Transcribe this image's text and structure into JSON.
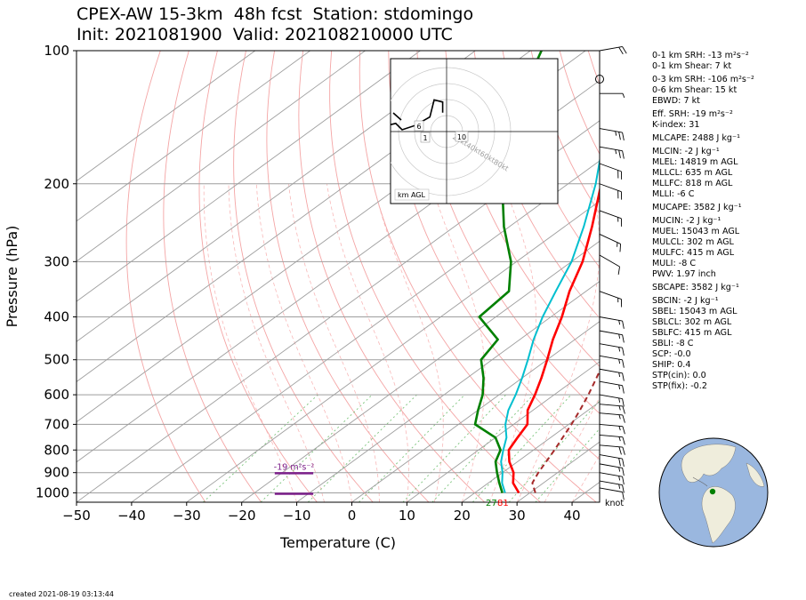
{
  "title_line1": "CPEX-AW 15-3km  48h fcst  Station: stdomingo",
  "title_line2": "Init: 2021081900  Valid: 202108210000 UTC",
  "created": "created 2021-08-19 03:13:44",
  "params": [
    {
      "text": "0-1 km SRH: -13 m²s⁻²",
      "gap": false
    },
    {
      "text": "0-1 km Shear: 7 kt",
      "gap": false
    },
    {
      "text": "0-3 km SRH: -106 m²s⁻²",
      "gap": true
    },
    {
      "text": "0-6 km Shear: 15 kt",
      "gap": false
    },
    {
      "text": "EBWD: 7 kt",
      "gap": false
    },
    {
      "text": "Eff. SRH: -19 m²s⁻²",
      "gap": true
    },
    {
      "text": "K-index: 31",
      "gap": false
    },
    {
      "text": "MLCAPE: 2488 J kg⁻¹",
      "gap": true
    },
    {
      "text": "MLCIN: -2 J kg⁻¹",
      "gap": true
    },
    {
      "text": "MLEL: 14819 m AGL",
      "gap": false
    },
    {
      "text": "MLLCL: 635 m AGL",
      "gap": false
    },
    {
      "text": "MLLFC: 818 m AGL",
      "gap": false
    },
    {
      "text": "MLLI: -6 C",
      "gap": false
    },
    {
      "text": "MUCAPE: 3582 J kg⁻¹",
      "gap": true
    },
    {
      "text": "MUCIN: -2 J kg⁻¹",
      "gap": true
    },
    {
      "text": "MUEL: 15043 m AGL",
      "gap": false
    },
    {
      "text": "MULCL: 302 m AGL",
      "gap": false
    },
    {
      "text": "MULFC: 415 m AGL",
      "gap": false
    },
    {
      "text": "MULI: -8 C",
      "gap": false
    },
    {
      "text": "PWV: 1.97 inch",
      "gap": false
    },
    {
      "text": "SBCAPE: 3582 J kg⁻¹",
      "gap": true
    },
    {
      "text": "SBCIN: -2 J kg⁻¹",
      "gap": true
    },
    {
      "text": "SBEL: 15043 m AGL",
      "gap": false
    },
    {
      "text": "SBLCL: 302 m AGL",
      "gap": false
    },
    {
      "text": "SBLFC: 415 m AGL",
      "gap": false
    },
    {
      "text": "SBLI: -8 C",
      "gap": false
    },
    {
      "text": "SCP: -0.0",
      "gap": false
    },
    {
      "text": "SHIP: 0.4",
      "gap": false
    },
    {
      "text": "STP(cin): 0.0",
      "gap": false
    },
    {
      "text": "STP(fix): -0.2",
      "gap": false
    }
  ],
  "colors": {
    "temperature": "#ff0000",
    "dewpoint": "#008000",
    "wetbulb": "#00bfcf",
    "parcel": "#a52a2a",
    "isobar": "#9e9e9e",
    "isotherm": "#9e9e9e",
    "dry_adiabat": "#f4a5a5",
    "moist_adiabat": "#f8b8b8",
    "mixing_ratio": "#7cc47c",
    "srh_bar": "#7b1f8a",
    "globe_ocean": "#9ab7df",
    "globe_land": "#efeddc",
    "station_dot": "#008000"
  },
  "chart_data": {
    "type": "line",
    "subtype": "skew-t log-p",
    "xlabel": "Temperature (C)",
    "ylabel": "Pressure (hPa)",
    "xlim": [
      -50,
      45
    ],
    "ylim": [
      1050,
      100
    ],
    "x_ticks": [
      -50,
      -40,
      -30,
      -20,
      -10,
      0,
      10,
      20,
      30,
      40
    ],
    "y_ticks": [
      100,
      200,
      300,
      400,
      500,
      600,
      700,
      800,
      900,
      1000
    ],
    "series": [
      {
        "name": "Temperature",
        "pressure": [
          1000,
          950,
          900,
          850,
          800,
          750,
          700,
          650,
          600,
          550,
          500,
          450,
          400,
          350,
          300,
          250,
          200,
          150,
          100
        ],
        "temperature": [
          28,
          24.5,
          22,
          18.5,
          15.5,
          14,
          12.5,
          9,
          6.5,
          3.5,
          0,
          -4,
          -8,
          -13,
          -18,
          -25,
          -34,
          -45,
          -58
        ]
      },
      {
        "name": "Dewpoint",
        "pressure": [
          1000,
          950,
          900,
          850,
          800,
          750,
          700,
          650,
          600,
          550,
          500,
          450,
          400,
          350,
          300,
          250,
          200,
          150,
          100
        ],
        "temperature": [
          25,
          22,
          19,
          16,
          14,
          10,
          3,
          0,
          -3,
          -7,
          -12,
          -14,
          -23,
          -24,
          -31,
          -41,
          -52,
          -65,
          -78
        ]
      },
      {
        "name": "Wet-bulb",
        "pressure": [
          1000,
          950,
          900,
          850,
          800,
          750,
          700,
          650,
          600,
          550,
          500,
          450,
          400,
          350,
          300,
          250,
          200,
          150,
          100
        ],
        "temperature": [
          25.5,
          22.5,
          20,
          17,
          14.5,
          12,
          8.5,
          5.5,
          3,
          0,
          -3.5,
          -7.5,
          -11.5,
          -15.5,
          -20,
          -26.5,
          -35,
          -47,
          -62
        ]
      },
      {
        "name": "Parcel",
        "pressure": [
          1000,
          950,
          900,
          850,
          800,
          750,
          700,
          650,
          600,
          550,
          500,
          450,
          400,
          350,
          300,
          250,
          200,
          150,
          100
        ],
        "temperature": [
          31,
          28,
          26.5,
          25.2,
          23.8,
          22.2,
          20.5,
          18.5,
          16.2,
          13.5,
          10.5,
          7,
          3,
          -2,
          -8,
          -16,
          -26,
          -40,
          -60
        ]
      }
    ],
    "srh_markers": [
      {
        "label": "-19 m²s⁻²",
        "pressure": 850,
        "t_start": -14,
        "t_end": -7
      },
      {
        "label": "",
        "pressure": 1005,
        "t_start": -14,
        "t_end": -7
      }
    ],
    "surface_labels": [
      {
        "text": "27",
        "color": "green"
      },
      {
        "text": "81",
        "color": "red"
      }
    ],
    "hodograph": {
      "rings_kt": [
        20,
        40,
        60,
        80
      ],
      "ring_labels": [
        "20kt",
        "40kt",
        "60kt",
        "80kt"
      ],
      "legend": "km AGL",
      "height_labels": [
        "6",
        "1",
        "10"
      ],
      "trace": [
        [
          -9,
          3
        ],
        [
          -6,
          -1
        ],
        [
          -2,
          -3
        ],
        [
          2,
          -2
        ],
        [
          5,
          -5
        ],
        [
          11,
          -3
        ],
        [
          18,
          1
        ],
        [
          20,
          9
        ],
        [
          24,
          8
        ],
        [
          24,
          3
        ]
      ]
    },
    "wind_barbs": {
      "unit_label": "knot",
      "barbs": [
        {
          "p": 100,
          "speed": 20,
          "dir": 80
        },
        {
          "p": 125,
          "speed": 5,
          "dir": 90
        },
        {
          "p": 150,
          "speed": 25,
          "dir": 100
        },
        {
          "p": 165,
          "speed": 25,
          "dir": 100
        },
        {
          "p": 180,
          "speed": 20,
          "dir": 110
        },
        {
          "p": 200,
          "speed": 20,
          "dir": 110
        },
        {
          "p": 230,
          "speed": 15,
          "dir": 110
        },
        {
          "p": 260,
          "speed": 15,
          "dir": 115
        },
        {
          "p": 290,
          "speed": 10,
          "dir": 120
        },
        {
          "p": 350,
          "speed": 15,
          "dir": 110
        },
        {
          "p": 400,
          "speed": 15,
          "dir": 100
        },
        {
          "p": 430,
          "speed": 15,
          "dir": 100
        },
        {
          "p": 460,
          "speed": 15,
          "dir": 100
        },
        {
          "p": 490,
          "speed": 15,
          "dir": 100
        },
        {
          "p": 525,
          "speed": 15,
          "dir": 100
        },
        {
          "p": 560,
          "speed": 15,
          "dir": 100
        },
        {
          "p": 600,
          "speed": 15,
          "dir": 100
        },
        {
          "p": 630,
          "speed": 15,
          "dir": 95
        },
        {
          "p": 660,
          "speed": 15,
          "dir": 95
        },
        {
          "p": 700,
          "speed": 15,
          "dir": 95
        },
        {
          "p": 740,
          "speed": 15,
          "dir": 95
        },
        {
          "p": 780,
          "speed": 20,
          "dir": 95
        },
        {
          "p": 820,
          "speed": 20,
          "dir": 100
        },
        {
          "p": 860,
          "speed": 15,
          "dir": 100
        },
        {
          "p": 900,
          "speed": 15,
          "dir": 100
        },
        {
          "p": 940,
          "speed": 15,
          "dir": 100
        },
        {
          "p": 975,
          "speed": 10,
          "dir": 100
        }
      ]
    }
  }
}
